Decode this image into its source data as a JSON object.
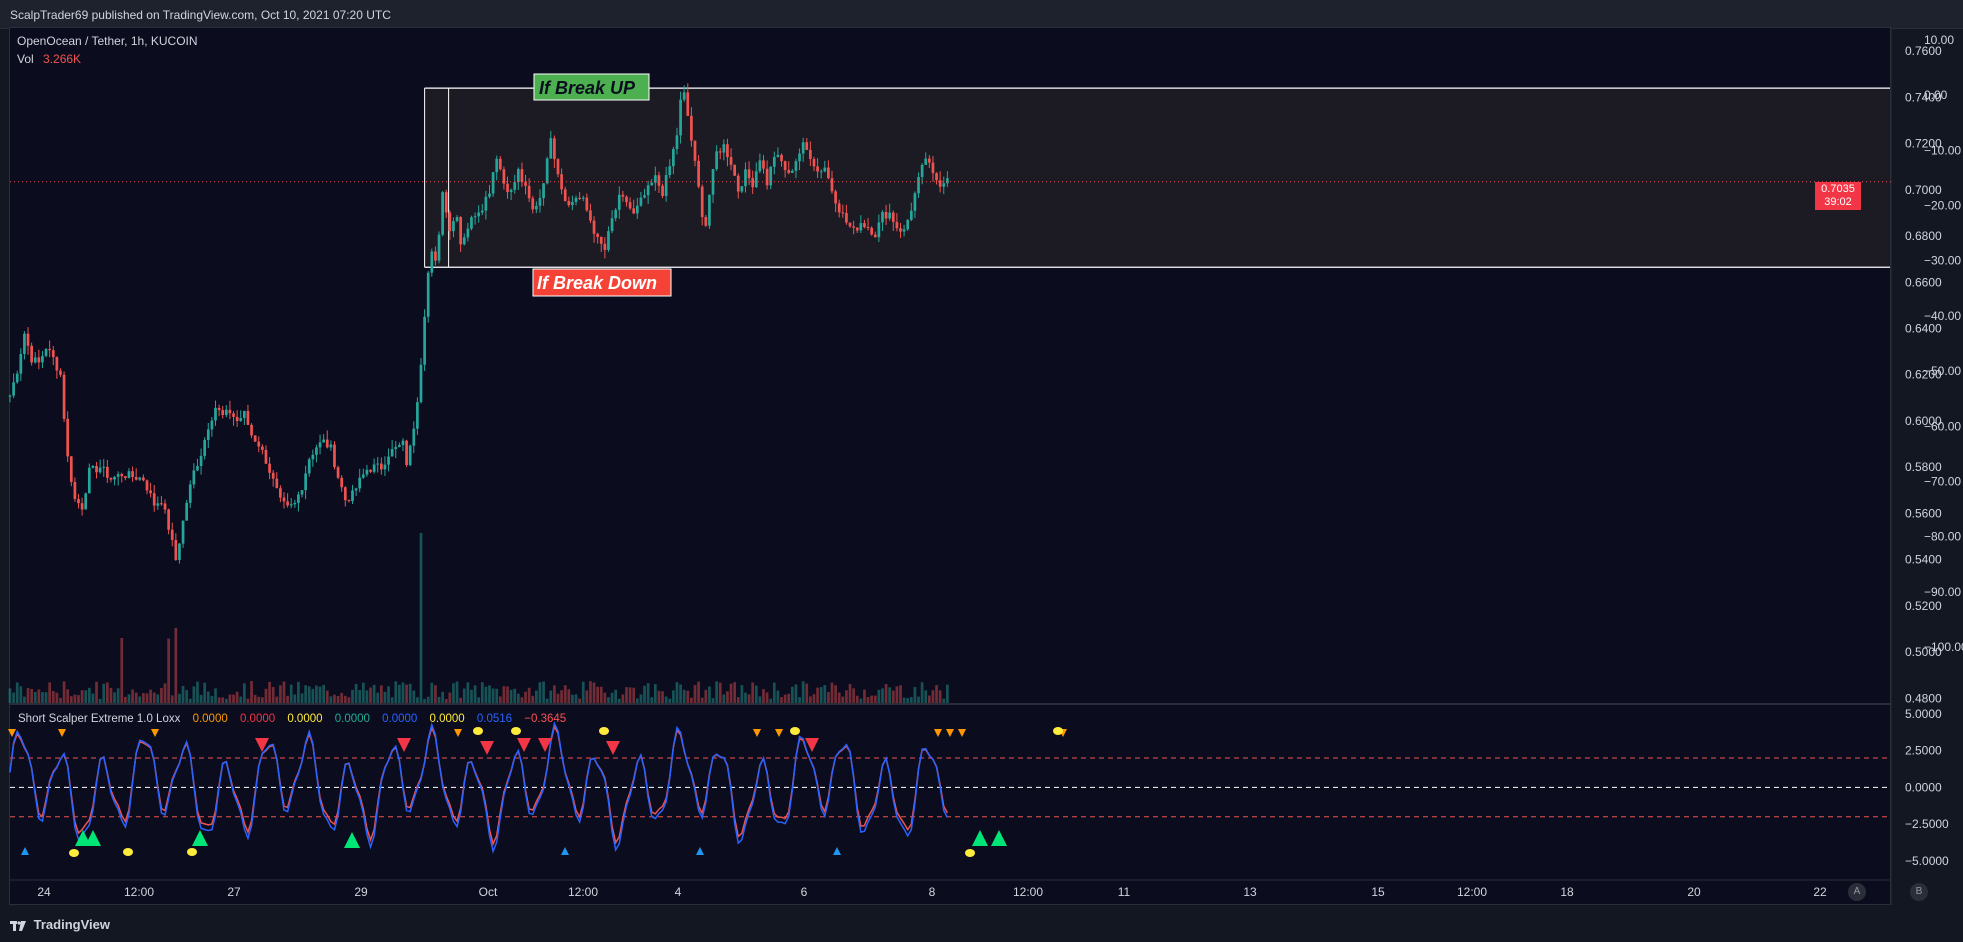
{
  "publish_line": "ScalpTrader69 published on TradingView.com, Oct 10, 2021 07:20 UTC",
  "symbol_line": "OpenOcean / Tether, 1h, KUCOIN",
  "vol_label": "Vol",
  "vol_value": "3.266K",
  "annotations": {
    "break_up": "If Break UP",
    "break_down": "If Break Down"
  },
  "last_price": {
    "value": "0.7035",
    "countdown": "39:02"
  },
  "indicator": {
    "name": "Short Scalper Extreme 1.0 Loxx",
    "values": [
      {
        "text": "0.0000",
        "color": "#ff9800"
      },
      {
        "text": "0.0000",
        "color": "#f23645"
      },
      {
        "text": "0.0000",
        "color": "#ffeb3b"
      },
      {
        "text": "0.0000",
        "color": "#22ab94"
      },
      {
        "text": "0.0000",
        "color": "#2962ff"
      },
      {
        "text": "0.0000",
        "color": "#ffeb3b"
      },
      {
        "text": "0.0516",
        "color": "#2962ff"
      },
      {
        "text": "−0.3645",
        "color": "#ff5252"
      }
    ]
  },
  "brand": "TradingView",
  "scale_buttons": [
    "A",
    "B"
  ],
  "colors": {
    "up": "#26a69a",
    "down": "#ef5350",
    "accent_green": "#4caf50",
    "accent_red": "#f44336"
  },
  "chart_data": [
    {
      "type": "candlestick",
      "title": "OpenOcean / Tether, 1h, KUCOIN",
      "price_ticks": [
        "0.7600",
        "0.7400",
        "0.7200",
        "0.7000",
        "0.6800",
        "0.6600",
        "0.6400",
        "0.6200",
        "0.6000",
        "0.5800",
        "0.5600",
        "0.5400",
        "0.5200",
        "0.5000",
        "0.4800"
      ],
      "right_ticks": [
        "10.00",
        "0.00",
        "−10.00",
        "−20.00",
        "−30.00",
        "−40.00",
        "−50.00",
        "−60.00",
        "−70.00",
        "−80.00",
        "−90.00",
        "−100.00"
      ],
      "x_ticks": [
        "24",
        "12:00",
        "27",
        "29",
        "Oct",
        "12:00",
        "4",
        "6",
        "8",
        "12:00",
        "11",
        "13",
        "15",
        "12:00",
        "18",
        "20",
        "22"
      ],
      "ylim": [
        0.478,
        0.77
      ],
      "range_box": {
        "top": 0.744,
        "bottom": 0.6665
      },
      "anchors": [
        [
          0,
          0.611
        ],
        [
          2,
          0.622
        ],
        [
          4,
          0.638
        ],
        [
          6,
          0.627
        ],
        [
          8,
          0.625
        ],
        [
          10,
          0.632
        ],
        [
          12,
          0.627
        ],
        [
          14,
          0.62
        ],
        [
          16,
          0.584
        ],
        [
          18,
          0.566
        ],
        [
          20,
          0.563
        ],
        [
          22,
          0.578
        ],
        [
          25,
          0.58
        ],
        [
          28,
          0.575
        ],
        [
          31,
          0.577
        ],
        [
          34,
          0.576
        ],
        [
          37,
          0.575
        ],
        [
          40,
          0.564
        ],
        [
          42,
          0.566
        ],
        [
          44,
          0.554
        ],
        [
          46,
          0.54
        ],
        [
          47,
          0.548
        ],
        [
          49,
          0.565
        ],
        [
          51,
          0.578
        ],
        [
          53,
          0.586
        ],
        [
          55,
          0.598
        ],
        [
          57,
          0.606
        ],
        [
          59,
          0.602
        ],
        [
          61,
          0.604
        ],
        [
          63,
          0.6
        ],
        [
          65,
          0.603
        ],
        [
          67,
          0.594
        ],
        [
          69,
          0.59
        ],
        [
          71,
          0.583
        ],
        [
          73,
          0.574
        ],
        [
          75,
          0.565
        ],
        [
          77,
          0.562
        ],
        [
          79,
          0.564
        ],
        [
          81,
          0.572
        ],
        [
          83,
          0.584
        ],
        [
          85,
          0.589
        ],
        [
          87,
          0.591
        ],
        [
          89,
          0.588
        ],
        [
          91,
          0.576
        ],
        [
          93,
          0.566
        ],
        [
          95,
          0.568
        ],
        [
          97,
          0.574
        ],
        [
          99,
          0.579
        ],
        [
          101,
          0.58
        ],
        [
          103,
          0.58
        ],
        [
          105,
          0.586
        ],
        [
          107,
          0.588
        ],
        [
          109,
          0.59
        ],
        [
          110,
          0.582
        ],
        [
          111,
          0.588
        ],
        [
          112,
          0.598
        ],
        [
          113,
          0.61
        ],
        [
          114,
          0.626
        ],
        [
          115,
          0.647
        ],
        [
          116,
          0.664
        ],
        [
          117,
          0.672
        ],
        [
          118,
          0.668
        ],
        [
          119,
          0.682
        ],
        [
          120,
          0.699
        ],
        [
          121,
          0.692
        ],
        [
          122,
          0.683
        ],
        [
          124,
          0.69
        ],
        [
          125,
          0.677
        ],
        [
          127,
          0.684
        ],
        [
          129,
          0.69
        ],
        [
          131,
          0.693
        ],
        [
          133,
          0.7
        ],
        [
          134,
          0.708
        ],
        [
          135,
          0.715
        ],
        [
          137,
          0.703
        ],
        [
          139,
          0.699
        ],
        [
          141,
          0.708
        ],
        [
          143,
          0.7
        ],
        [
          145,
          0.691
        ],
        [
          147,
          0.697
        ],
        [
          149,
          0.712
        ],
        [
          150,
          0.724
        ],
        [
          151,
          0.715
        ],
        [
          153,
          0.701
        ],
        [
          155,
          0.693
        ],
        [
          157,
          0.697
        ],
        [
          159,
          0.695
        ],
        [
          161,
          0.687
        ],
        [
          163,
          0.678
        ],
        [
          165,
          0.674
        ],
        [
          167,
          0.687
        ],
        [
          169,
          0.696
        ],
        [
          171,
          0.695
        ],
        [
          173,
          0.689
        ],
        [
          175,
          0.695
        ],
        [
          177,
          0.7
        ],
        [
          179,
          0.705
        ],
        [
          181,
          0.699
        ],
        [
          183,
          0.71
        ],
        [
          185,
          0.724
        ],
        [
          186,
          0.738
        ],
        [
          187,
          0.741
        ],
        [
          188,
          0.732
        ],
        [
          190,
          0.711
        ],
        [
          192,
          0.69
        ],
        [
          193,
          0.685
        ],
        [
          194,
          0.698
        ],
        [
          196,
          0.716
        ],
        [
          198,
          0.719
        ],
        [
          200,
          0.712
        ],
        [
          202,
          0.7
        ],
        [
          204,
          0.707
        ],
        [
          206,
          0.703
        ],
        [
          208,
          0.714
        ],
        [
          210,
          0.703
        ],
        [
          212,
          0.715
        ],
        [
          214,
          0.712
        ],
        [
          216,
          0.706
        ],
        [
          218,
          0.713
        ],
        [
          220,
          0.719
        ],
        [
          222,
          0.715
        ],
        [
          224,
          0.708
        ],
        [
          226,
          0.71
        ],
        [
          228,
          0.7
        ],
        [
          230,
          0.692
        ],
        [
          232,
          0.686
        ],
        [
          234,
          0.682
        ],
        [
          236,
          0.686
        ],
        [
          238,
          0.684
        ],
        [
          240,
          0.681
        ],
        [
          242,
          0.689
        ],
        [
          244,
          0.69
        ],
        [
          246,
          0.684
        ],
        [
          248,
          0.682
        ],
        [
          250,
          0.692
        ],
        [
          252,
          0.704
        ],
        [
          254,
          0.714
        ],
        [
          256,
          0.706
        ],
        [
          258,
          0.703
        ],
        [
          260,
          0.705
        ]
      ],
      "x_span": [
        0,
        300
      ]
    },
    {
      "type": "line",
      "title": "Short Scalper Extreme 1.0 Loxx",
      "y_ticks": [
        "5.0000",
        "2.5000",
        "0.0000",
        "−2.5000",
        "−5.0000"
      ],
      "ylim": [
        -6.3,
        5.6
      ],
      "bands": [
        2.0,
        0,
        -2.0
      ]
    }
  ]
}
